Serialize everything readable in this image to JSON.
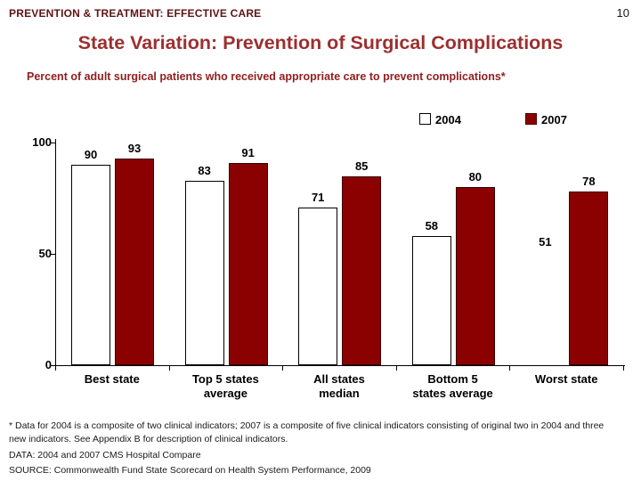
{
  "slide": {
    "header": "PREVENTION & TREATMENT: EFFECTIVE CARE",
    "page_number": "10",
    "title": "State Variation: Prevention of Surgical Complications",
    "subtitle": "Percent of adult surgical patients who received appropriate care to prevent complications*",
    "footnotes": [
      "* Data for 2004 is a composite of two clinical indicators; 2007 is a composite of five clinical indicators consisting of original two in 2004 and three new indicators. See Appendix B for description of clinical indicators.",
      "DATA: 2004 and 2007 CMS Hospital Compare",
      "SOURCE: Commonwealth Fund State Scorecard on Health System Performance, 2009"
    ]
  },
  "chart_data": {
    "type": "bar",
    "categories": [
      "Best state",
      "Top 5 states average",
      "All states median",
      "Bottom 5 states average",
      "Worst state"
    ],
    "category_label_lines": [
      [
        "Best state"
      ],
      [
        "Top 5 states",
        "average"
      ],
      [
        "All states",
        "median"
      ],
      [
        "Bottom 5",
        "states average"
      ],
      [
        "Worst state"
      ]
    ],
    "series": [
      {
        "name": "2004",
        "values": [
          90,
          83,
          71,
          58,
          51
        ],
        "fill": "#ffffff",
        "border": "#000000",
        "bar_not_drawn_for": [
          "Worst state"
        ]
      },
      {
        "name": "2007",
        "values": [
          93,
          91,
          85,
          80,
          78
        ],
        "fill": "#8b0101",
        "border": "#3a0000"
      }
    ],
    "ylim": [
      0,
      100
    ],
    "yticks": [
      0,
      50,
      100
    ],
    "legend": {
      "position": "top-right",
      "entries": [
        "2004",
        "2007"
      ]
    },
    "grid": false
  },
  "colors": {
    "header_text": "#5e1414",
    "title_text": "#9c2f2f",
    "subtitle_text": "#8f1f1f",
    "bar_2004_fill": "#ffffff",
    "bar_2004_border": "#000000",
    "bar_2007_fill": "#8b0101",
    "axis": "#000000",
    "footnote_text": "#1a1a1a"
  }
}
